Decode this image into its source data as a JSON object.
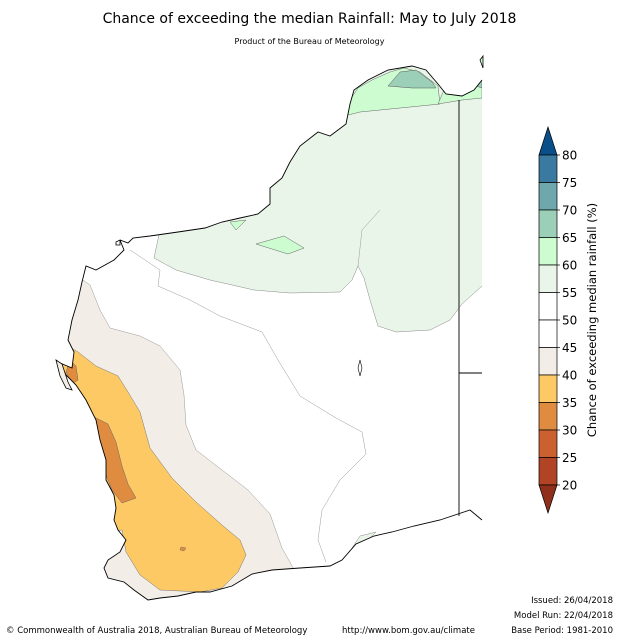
{
  "title": "Chance of exceeding the median Rainfall: May to July 2018",
  "subtitle": "Product of the Bureau of Meteorology",
  "legend": {
    "label": "Chance of exceeding median rainfall (%)",
    "ticks": [
      "80",
      "75",
      "70",
      "65",
      "60",
      "55",
      "50",
      "45",
      "40",
      "35",
      "30",
      "25",
      "20"
    ],
    "colors": [
      "#0b4f8a",
      "#3b7aa0",
      "#6fa8ac",
      "#9ccfb8",
      "#ccfcd0",
      "#e8f5e8",
      "#ffffff",
      "#ffffff",
      "#f2ede6",
      "#fdc965",
      "#e08c40",
      "#cc6130",
      "#b04424",
      "#902f1a"
    ]
  },
  "colors": {
    "outside": "#ffffff",
    "band_40_45": "#f2ede6",
    "band_35_40": "#fdc965",
    "band_30_35": "#e08c40",
    "band_55_60": "#e8f5e8",
    "band_60_65": "#ccfcd0",
    "band_65_70": "#9ccfb8"
  },
  "footer": {
    "issued": "Issued: 26/04/2018",
    "model_run": "Model Run: 22/04/2018",
    "base_period": "Base Period: 1981-2010",
    "copyright": "© Commonwealth of Australia 2018, Australian Bureau of Meteorology",
    "url": "http://www.bom.gov.au/climate"
  }
}
